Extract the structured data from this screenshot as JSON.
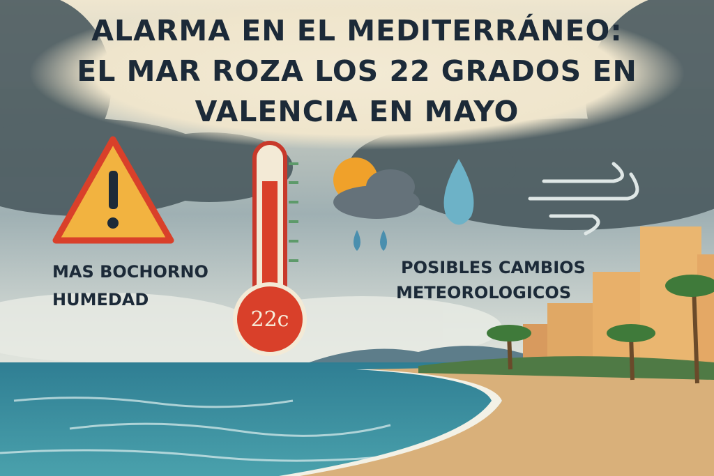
{
  "header": {
    "title_lines": [
      "ALARMA EN EL MEDITERRÁNEO:",
      "EL MAR ROZA LOS 22 GRADOS EN",
      "VALENCIA EN MAYO"
    ]
  },
  "left_label": {
    "lines": [
      "MAS BOCHORNO",
      "HUMEDAD"
    ]
  },
  "thermometer": {
    "reading": "22c"
  },
  "right_label": {
    "lines": [
      "POSIBLES CAMBIOS",
      "METEOROLOGICOS"
    ]
  }
}
